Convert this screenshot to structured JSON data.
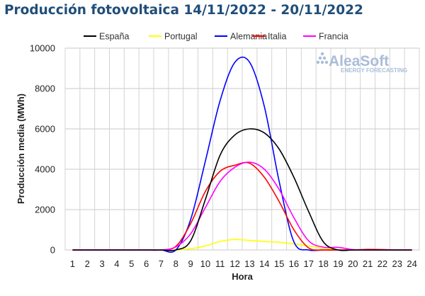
{
  "chart_data": {
    "type": "line",
    "title": "Producción fotovoltaica 14/11/2022 - 20/11/2022",
    "xlabel": "Hora",
    "ylabel": "Producción media (MWh)",
    "x": [
      1,
      2,
      3,
      4,
      5,
      6,
      7,
      8,
      9,
      10,
      11,
      12,
      13,
      14,
      15,
      16,
      17,
      18,
      19,
      20,
      21,
      22,
      23,
      24
    ],
    "ylim": [
      0,
      10000
    ],
    "yticks": [
      0,
      2000,
      4000,
      6000,
      8000,
      10000
    ],
    "grid": true,
    "legend_position": "top",
    "series": [
      {
        "name": "España",
        "color": "#000000",
        "values": [
          0,
          0,
          0,
          0,
          0,
          0,
          0,
          0,
          450,
          2500,
          4700,
          5700,
          6000,
          5800,
          5000,
          3600,
          1900,
          400,
          0,
          0,
          0,
          0,
          0,
          0
        ]
      },
      {
        "name": "Portugal",
        "color": "#ffff00",
        "values": [
          0,
          0,
          0,
          0,
          0,
          0,
          0,
          0,
          60,
          200,
          420,
          520,
          470,
          420,
          380,
          300,
          200,
          80,
          10,
          0,
          0,
          0,
          0,
          0
        ]
      },
      {
        "name": "Alemania",
        "color": "#0000ff",
        "values": [
          0,
          0,
          0,
          0,
          0,
          0,
          0,
          0,
          1500,
          4400,
          7400,
          9300,
          9300,
          7100,
          3400,
          400,
          0,
          0,
          0,
          0,
          0,
          0,
          0,
          0
        ]
      },
      {
        "name": "Italia",
        "color": "#ff0000",
        "values": [
          0,
          0,
          0,
          0,
          0,
          0,
          0,
          180,
          1300,
          2900,
          3900,
          4200,
          4300,
          3600,
          2400,
          1000,
          100,
          0,
          0,
          0,
          30,
          20,
          0,
          0
        ]
      },
      {
        "name": "Francia",
        "color": "#ff00ff",
        "values": [
          0,
          0,
          0,
          0,
          0,
          0,
          0,
          150,
          800,
          2100,
          3400,
          4100,
          4350,
          4000,
          3000,
          1600,
          450,
          140,
          130,
          20,
          0,
          0,
          0,
          0
        ]
      }
    ],
    "watermark": {
      "brand": "AleaSoft",
      "tagline": "ENERGY FORECASTING"
    }
  }
}
